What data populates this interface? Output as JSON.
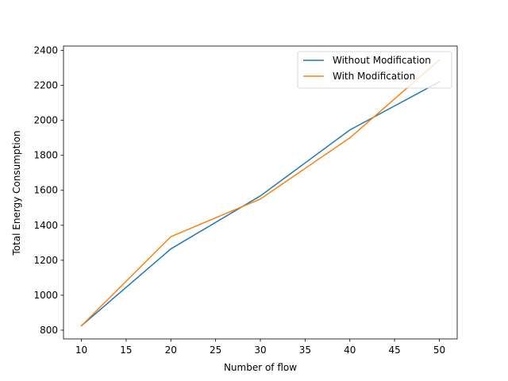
{
  "chart_data": {
    "type": "line",
    "title": "",
    "xlabel": "Number of flow",
    "ylabel": "Total Energy Consumption",
    "xlim": [
      8,
      52
    ],
    "ylim": [
      750,
      2425
    ],
    "xticks": [
      10,
      15,
      20,
      25,
      30,
      35,
      40,
      45,
      50
    ],
    "yticks": [
      800,
      1000,
      1200,
      1400,
      1600,
      1800,
      2000,
      2200,
      2400
    ],
    "x": [
      10,
      20,
      30,
      40,
      50
    ],
    "series": [
      {
        "name": "Without Modification",
        "color": "#1f77b4",
        "values": [
          825,
          1265,
          1568,
          1945,
          2220
        ]
      },
      {
        "name": "With Modification",
        "color": "#ff7f0e",
        "values": [
          825,
          1335,
          1550,
          1900,
          2345
        ]
      }
    ],
    "legend": "top-right",
    "grid": false
  }
}
